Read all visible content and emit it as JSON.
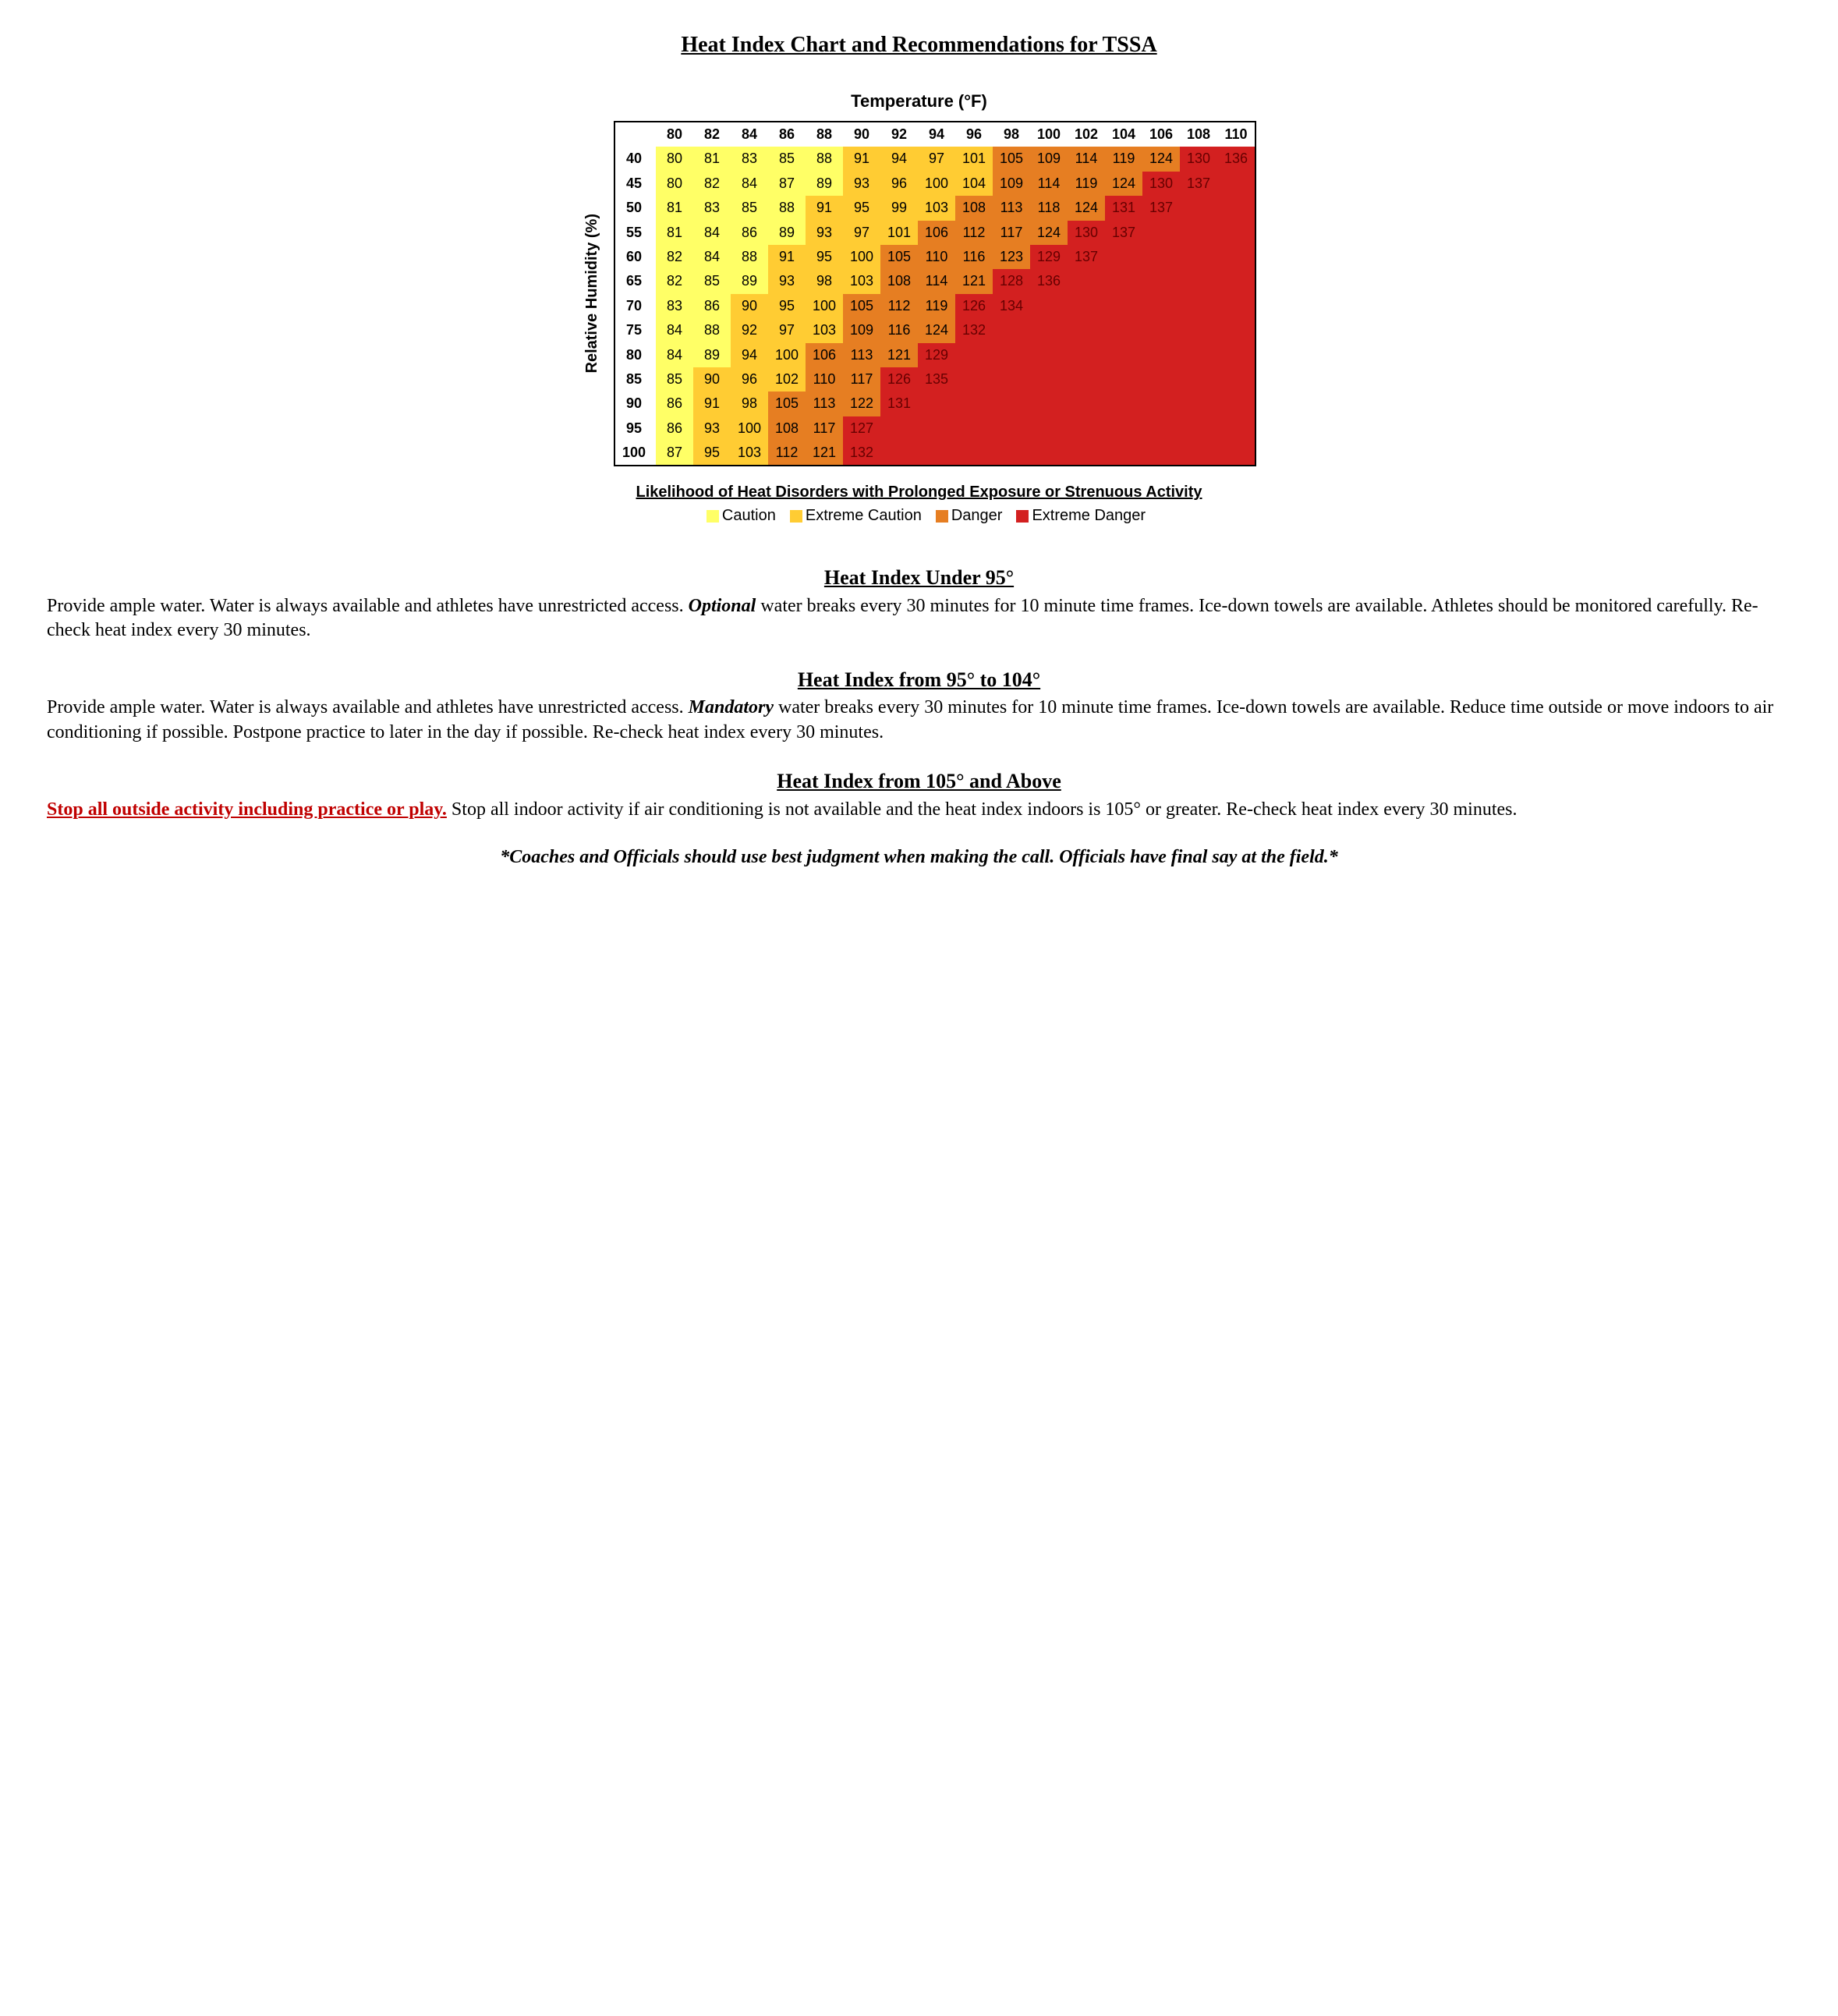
{
  "title": "Heat Index Chart and Recommendations for TSSA",
  "chart": {
    "x_axis_label": "Temperature (°F)",
    "y_axis_label": "Relative Humidity (%)",
    "temperatures": [
      80,
      82,
      84,
      86,
      88,
      90,
      92,
      94,
      96,
      98,
      100,
      102,
      104,
      106,
      108,
      110
    ],
    "humidities": [
      40,
      45,
      50,
      55,
      60,
      65,
      70,
      75,
      80,
      85,
      90,
      95,
      100
    ],
    "values": [
      [
        80,
        81,
        83,
        85,
        88,
        91,
        94,
        97,
        101,
        105,
        109,
        114,
        119,
        124,
        130,
        136
      ],
      [
        80,
        82,
        84,
        87,
        89,
        93,
        96,
        100,
        104,
        109,
        114,
        119,
        124,
        130,
        137,
        null
      ],
      [
        81,
        83,
        85,
        88,
        91,
        95,
        99,
        103,
        108,
        113,
        118,
        124,
        131,
        137,
        null,
        null
      ],
      [
        81,
        84,
        86,
        89,
        93,
        97,
        101,
        106,
        112,
        117,
        124,
        130,
        137,
        null,
        null,
        null
      ],
      [
        82,
        84,
        88,
        91,
        95,
        100,
        105,
        110,
        116,
        123,
        129,
        137,
        null,
        null,
        null,
        null
      ],
      [
        82,
        85,
        89,
        93,
        98,
        103,
        108,
        114,
        121,
        128,
        136,
        null,
        null,
        null,
        null,
        null
      ],
      [
        83,
        86,
        90,
        95,
        100,
        105,
        112,
        119,
        126,
        134,
        null,
        null,
        null,
        null,
        null,
        null
      ],
      [
        84,
        88,
        92,
        97,
        103,
        109,
        116,
        124,
        132,
        null,
        null,
        null,
        null,
        null,
        null,
        null
      ],
      [
        84,
        89,
        94,
        100,
        106,
        113,
        121,
        129,
        null,
        null,
        null,
        null,
        null,
        null,
        null,
        null
      ],
      [
        85,
        90,
        96,
        102,
        110,
        117,
        126,
        135,
        null,
        null,
        null,
        null,
        null,
        null,
        null,
        null
      ],
      [
        86,
        91,
        98,
        105,
        113,
        122,
        131,
        null,
        null,
        null,
        null,
        null,
        null,
        null,
        null,
        null
      ],
      [
        86,
        93,
        100,
        108,
        117,
        127,
        null,
        null,
        null,
        null,
        null,
        null,
        null,
        null,
        null,
        null
      ],
      [
        87,
        95,
        103,
        112,
        121,
        132,
        null,
        null,
        null,
        null,
        null,
        null,
        null,
        null,
        null,
        null
      ]
    ],
    "bands": {
      "caution": {
        "color": "#ffff66",
        "max": 89
      },
      "extreme_caution": {
        "color": "#ffcc33",
        "max": 104
      },
      "danger": {
        "color": "#e67e22",
        "max": 125
      },
      "extreme_danger": {
        "color": "#d32020",
        "max": 9999
      }
    }
  },
  "legend": {
    "title": "Likelihood of Heat Disorders with Prolonged Exposure or Strenuous Activity",
    "items": [
      {
        "label": "Caution",
        "color": "#ffff66"
      },
      {
        "label": "Extreme Caution",
        "color": "#ffcc33"
      },
      {
        "label": "Danger",
        "color": "#e67e22"
      },
      {
        "label": "Extreme Danger",
        "color": "#d32020"
      }
    ]
  },
  "sections": {
    "s1_heading": "Heat Index Under 95°",
    "s1_body_pre": "Provide ample water. Water is always available and athletes have unrestricted access. ",
    "s1_body_emph": "Optional",
    "s1_body_post": " water breaks every 30 minutes for 10 minute time frames. Ice-down towels are available. Athletes should be monitored carefully. Re-check heat index every 30 minutes.",
    "s2_heading": "Heat Index from 95° to 104°",
    "s2_body_pre": "Provide ample water. Water is always available and athletes have unrestricted access. ",
    "s2_body_emph": "Mandatory",
    "s2_body_post": " water breaks every 30 minutes for 10 minute time frames. Ice-down towels are available. Reduce time outside or move indoors to air conditioning if possible. Postpone practice to later in the day if possible. Re-check heat index every 30 minutes.",
    "s3_heading": "Heat Index from 105° and Above",
    "s3_stop": "Stop all outside activity including practice or play.",
    "s3_rest": " Stop all indoor activity if air conditioning is not available and the heat index indoors is 105° or greater. Re-check heat index every 30 minutes."
  },
  "footnote": "*Coaches and Officials should use best judgment when making the call.  Officials have final say at the field.*"
}
